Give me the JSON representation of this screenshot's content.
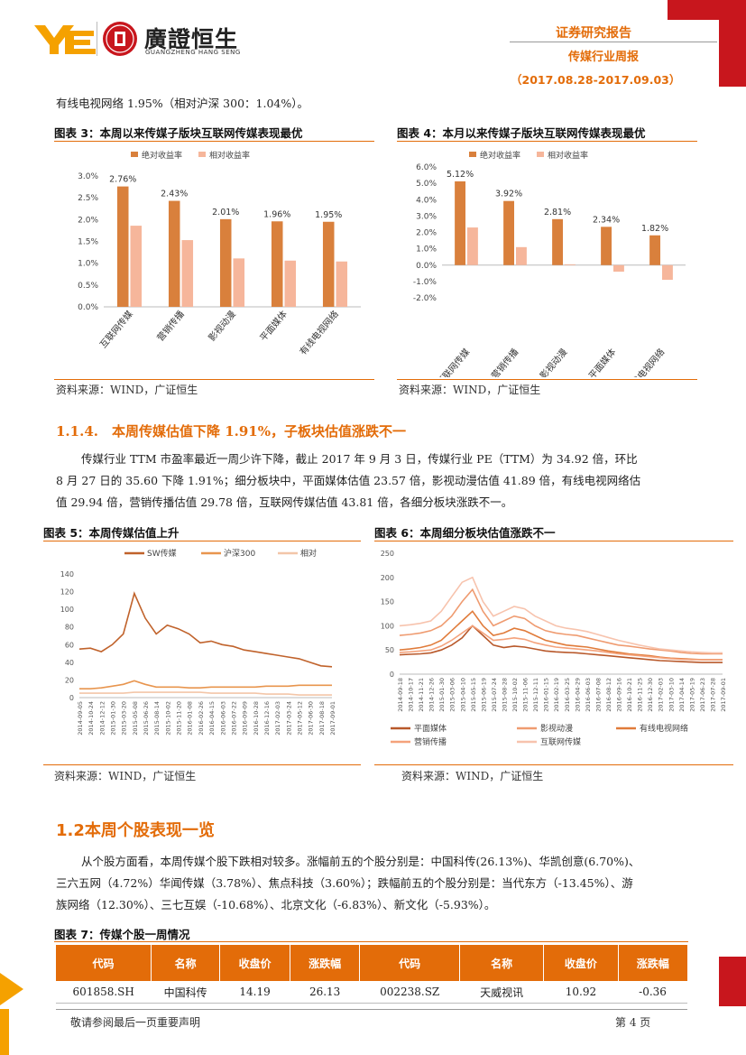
{
  "header": {
    "brand_name": "廣證恒生",
    "brand_name_en": "GUANGZHENG HANG SENG",
    "report_type": "证券研究报告",
    "report_name": "传媒行业周报",
    "date_range": "（2017.08.28-2017.09.03）"
  },
  "intro_text": "有线电视网络 1.95%（相对沪深 300：1.04%）。",
  "fig3": {
    "title": "图表 3：本周以来传媒子版块互联网传媒表现最优",
    "source": "资料来源：WIND，广证恒生",
    "chart_data": {
      "type": "bar",
      "categories": [
        "互联网传媒",
        "营销传播",
        "影视动漫",
        "平面媒体",
        "有线电视网络"
      ],
      "series": [
        {
          "name": "绝对收益率",
          "values": [
            2.76,
            2.43,
            2.01,
            1.96,
            1.95
          ],
          "color": "#d9803c"
        },
        {
          "name": "相对收益率",
          "values": [
            1.86,
            1.53,
            1.11,
            1.06,
            1.04
          ],
          "color": "#f6b69b"
        }
      ],
      "data_labels": [
        "2.76%",
        "2.43%",
        "2.01%",
        "1.96%",
        "1.95%"
      ],
      "yticks": [
        "0.0%",
        "0.5%",
        "1.0%",
        "1.5%",
        "2.0%",
        "2.5%",
        "3.0%"
      ],
      "ylim": [
        0,
        3.0
      ],
      "legend": "top"
    }
  },
  "fig4": {
    "title": "图表 4：本月以来传媒子版块互联网传媒表现最优",
    "source": "资料来源：WIND，广证恒生",
    "chart_data": {
      "type": "bar",
      "categories": [
        "互联网传媒",
        "营销传播",
        "影视动漫",
        "平面媒体",
        "有线电视网络"
      ],
      "series": [
        {
          "name": "绝对收益率",
          "values": [
            5.12,
            3.92,
            2.81,
            2.34,
            1.82
          ],
          "color": "#d9803c"
        },
        {
          "name": "相对收益率",
          "values": [
            2.3,
            1.1,
            0.05,
            -0.4,
            -0.9
          ],
          "color": "#f6b69b"
        }
      ],
      "data_labels": [
        "5.12%",
        "3.92%",
        "2.81%",
        "2.34%",
        "1.82%"
      ],
      "yticks": [
        "-2.0%",
        "-1.0%",
        "0.0%",
        "1.0%",
        "2.0%",
        "3.0%",
        "4.0%",
        "5.0%",
        "6.0%"
      ],
      "ylim": [
        -2.0,
        6.0
      ],
      "legend": "top"
    }
  },
  "section_114": {
    "title": "1.1.4.　本周传媒估值下降 1.91%，子板块估值涨跌不一",
    "para_lines": [
      "传媒行业 TTM 市盈率最近一周少许下降，截止 2017 年 9 月 3 日，传媒行业 PE（TTM）为 34.92 倍，环比",
      "8 月 27 日的 35.60 下降 1.91%；细分板块中，平面媒体估值 23.57 倍，影视动漫估值 41.89 倍，有线电视网络估",
      "值 29.94 倍，营销传播估值 29.78 倍，互联网传媒估值 43.81 倍，各细分板块涨跌不一。"
    ]
  },
  "fig5": {
    "title": "图表 5：本周传媒估值上升",
    "source": "资料来源：WIND，广证恒生",
    "chart_data": {
      "type": "line",
      "x": [
        "2014-09-05",
        "2014-10-24",
        "2014-12-12",
        "2015-01-30",
        "2015-03-20",
        "2015-05-08",
        "2015-06-26",
        "2015-08-14",
        "2015-10-02",
        "2015-11-20",
        "2016-01-08",
        "2016-02-26",
        "2016-04-15",
        "2016-06-03",
        "2016-07-22",
        "2016-09-09",
        "2016-10-28",
        "2016-12-16",
        "2017-02-03",
        "2017-03-24",
        "2017-05-12",
        "2017-06-30",
        "2017-08-18",
        "2017-09-01"
      ],
      "series": [
        {
          "name": "SW传媒",
          "color": "#c0622b",
          "values": [
            55,
            56,
            52,
            60,
            72,
            118,
            90,
            72,
            82,
            78,
            72,
            62,
            64,
            60,
            58,
            54,
            52,
            50,
            48,
            46,
            44,
            40,
            36,
            35
          ]
        },
        {
          "name": "沪深300",
          "color": "#e8954e",
          "values": [
            10,
            10,
            11,
            13,
            15,
            19,
            15,
            12,
            12,
            12,
            11,
            11,
            12,
            12,
            12,
            12,
            12,
            13,
            13,
            13,
            14,
            14,
            14,
            14
          ]
        },
        {
          "name": "相对",
          "color": "#f3c6a8",
          "values": [
            5,
            5,
            5,
            5,
            5,
            6,
            6,
            6,
            6,
            6,
            6,
            6,
            5,
            5,
            5,
            5,
            5,
            4,
            4,
            4,
            3,
            3,
            3,
            3
          ]
        }
      ],
      "yticks": [
        "0",
        "20",
        "40",
        "60",
        "80",
        "100",
        "120",
        "140"
      ],
      "ylim": [
        0,
        140
      ],
      "legend": "top"
    }
  },
  "fig6": {
    "title": "图表 6：本周细分板块估值涨跌不一",
    "source": "资料来源：WIND，广证恒生",
    "chart_data": {
      "type": "line",
      "x": [
        "2014-09-18",
        "2014-10-17",
        "2014-11-21",
        "2014-12-26",
        "2015-01-30",
        "2015-03-06",
        "2015-04-10",
        "2015-05-15",
        "2015-06-19",
        "2015-07-24",
        "2015-08-28",
        "2015-10-02",
        "2015-11-06",
        "2015-12-11",
        "2016-01-15",
        "2016-02-19",
        "2016-03-25",
        "2016-04-29",
        "2016-06-03",
        "2016-07-08",
        "2016-08-12",
        "2016-09-16",
        "2016-10-21",
        "2016-11-25",
        "2016-12-30",
        "2017-02-03",
        "2017-03-10",
        "2017-04-14",
        "2017-05-19",
        "2017-06-23",
        "2017-07-28",
        "2017-09-01"
      ],
      "series": [
        {
          "name": "平面媒体",
          "color": "#b8582a",
          "values": [
            40,
            41,
            42,
            44,
            50,
            60,
            75,
            100,
            80,
            60,
            55,
            58,
            56,
            52,
            48,
            46,
            45,
            44,
            42,
            40,
            38,
            36,
            34,
            32,
            30,
            28,
            27,
            26,
            25,
            24,
            24,
            24
          ]
        },
        {
          "name": "影视动漫",
          "color": "#ef9b70",
          "values": [
            80,
            82,
            85,
            90,
            100,
            120,
            150,
            175,
            130,
            100,
            110,
            120,
            115,
            100,
            90,
            85,
            82,
            80,
            75,
            70,
            65,
            60,
            58,
            55,
            52,
            50,
            48,
            45,
            43,
            42,
            42,
            42
          ]
        },
        {
          "name": "有线电视网络",
          "color": "#e07b3a",
          "values": [
            50,
            52,
            55,
            60,
            70,
            90,
            110,
            130,
            100,
            80,
            85,
            95,
            90,
            80,
            70,
            65,
            60,
            58,
            56,
            52,
            48,
            45,
            42,
            40,
            38,
            35,
            33,
            32,
            31,
            30,
            30,
            30
          ]
        },
        {
          "name": "营销传播",
          "color": "#f4a27b",
          "values": [
            45,
            46,
            48,
            50,
            58,
            70,
            85,
            100,
            85,
            70,
            72,
            75,
            72,
            65,
            60,
            56,
            54,
            52,
            50,
            48,
            45,
            42,
            40,
            38,
            36,
            34,
            32,
            31,
            30,
            30,
            30,
            30
          ]
        },
        {
          "name": "互联网传媒",
          "color": "#f7c3ad",
          "values": [
            100,
            102,
            105,
            110,
            130,
            160,
            190,
            200,
            150,
            120,
            130,
            140,
            135,
            120,
            110,
            100,
            95,
            92,
            88,
            82,
            76,
            70,
            65,
            60,
            56,
            52,
            50,
            48,
            46,
            45,
            44,
            44
          ]
        }
      ],
      "yticks": [
        "0",
        "50",
        "100",
        "150",
        "200",
        "250"
      ],
      "ylim": [
        0,
        250
      ],
      "legend": "bottom"
    }
  },
  "section_12": {
    "title": "1.2本周个股表现一览",
    "para_lines": [
      "从个股方面看，本周传媒个股下跌相对较多。涨幅前五的个股分别是：中国科传(26.13%)、华凯创意(6.70%)、",
      "三六五网（4.72%）华闻传媒（3.78%）、焦点科技（3.60%）；跌幅前五的个股分别是：当代东方（-13.45%）、游",
      "族网络（12.30%）、三七互娱（-10.68%）、北京文化（-6.83%）、新文化（-5.93%）。"
    ]
  },
  "fig7": {
    "title": "图表 7：传媒个股一周情况",
    "headers": [
      "代码",
      "名称",
      "收盘价",
      "涨跌幅",
      "代码",
      "名称",
      "收盘价",
      "涨跌幅"
    ],
    "rows": [
      [
        "601858.SH",
        "中国科传",
        "14.19",
        "26.13",
        "002238.SZ",
        "天威视讯",
        "10.92",
        "-0.36"
      ]
    ]
  },
  "footer": {
    "disclaimer": "敬请参阅最后一页重要声明",
    "page": "第 4 页"
  },
  "colors": {
    "accent": "#e36c09",
    "brand_red": "#c8161d",
    "bar_dark": "#d9803c",
    "bar_light": "#f6b69b"
  }
}
